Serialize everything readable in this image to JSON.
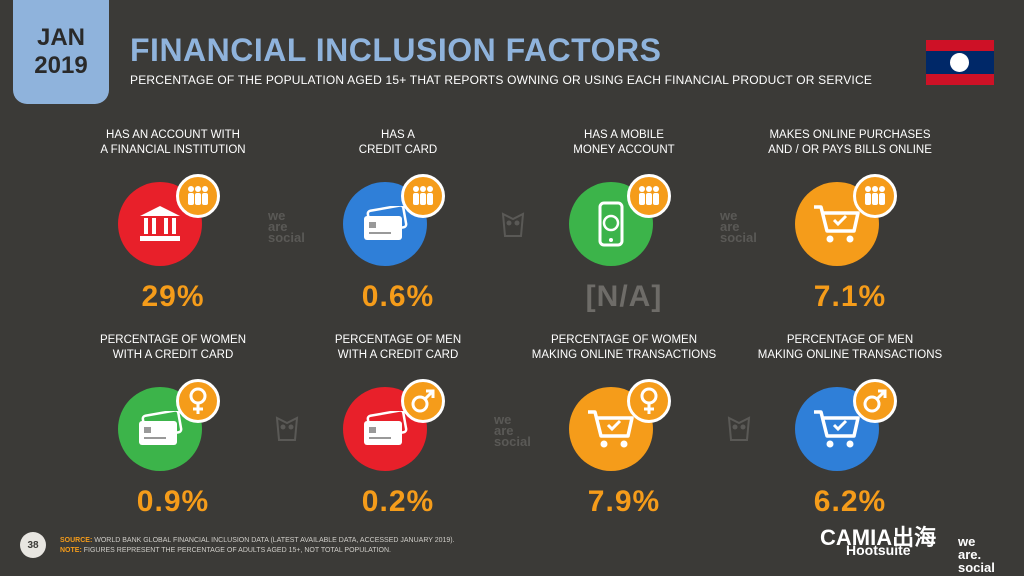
{
  "header": {
    "month": "JAN",
    "year": "2019",
    "title": "FINANCIAL INCLUSION FACTORS",
    "subtitle": "PERCENTAGE OF THE POPULATION AGED 15+ THAT REPORTS OWNING OR USING EACH FINANCIAL PRODUCT OR SERVICE"
  },
  "cards": [
    {
      "l1": "HAS AN ACCOUNT WITH",
      "l2": "A FINANCIAL INSTITUTION",
      "value": "29%",
      "color": "#e8202a",
      "icon": "bank-icon",
      "badge": "people-icon"
    },
    {
      "l1": "HAS A",
      "l2": "CREDIT CARD",
      "value": "0.6%",
      "color": "#2f7fd8",
      "icon": "credit-card-icon",
      "badge": "people-icon"
    },
    {
      "l1": "HAS A MOBILE",
      "l2": "MONEY ACCOUNT",
      "value": "[N/A]",
      "color": "#3cb44a",
      "icon": "mobile-money-icon",
      "badge": "people-icon"
    },
    {
      "l1": "MAKES ONLINE PURCHASES",
      "l2": "AND / OR PAYS BILLS ONLINE",
      "value": "7.1%",
      "color": "#f59c1a",
      "icon": "shopping-cart-icon",
      "badge": "people-icon"
    },
    {
      "l1": "PERCENTAGE OF WOMEN",
      "l2": "WITH A CREDIT CARD",
      "value": "0.9%",
      "color": "#3cb44a",
      "icon": "credit-card-icon",
      "badge": "female-icon"
    },
    {
      "l1": "PERCENTAGE OF MEN",
      "l2": "WITH A CREDIT CARD",
      "value": "0.2%",
      "color": "#e8202a",
      "icon": "credit-card-icon",
      "badge": "male-icon"
    },
    {
      "l1": "PERCENTAGE OF WOMEN",
      "l2": "MAKING ONLINE TRANSACTIONS",
      "value": "7.9%",
      "color": "#f59c1a",
      "icon": "shopping-cart-icon",
      "badge": "female-icon"
    },
    {
      "l1": "PERCENTAGE OF MEN",
      "l2": "MAKING ONLINE TRANSACTIONS",
      "value": "6.2%",
      "color": "#2f7fd8",
      "icon": "shopping-cart-icon",
      "badge": "male-icon"
    }
  ],
  "value_color": "#f59c1a",
  "badge_color": "#f59c1a",
  "watermark": {
    "l1": "we",
    "l2": "are",
    "l3": "social"
  },
  "footer": {
    "page": "38",
    "source_label": "SOURCE:",
    "source": "WORLD BANK GLOBAL FINANCIAL INCLUSION DATA (LATEST AVAILABLE DATA, ACCESSED JANUARY 2019).",
    "note_label": "NOTE:",
    "note": "FIGURES REPRESENT THE PERCENTAGE OF ADULTS AGED 15+, NOT TOTAL POPULATION.",
    "brand_overlay": "CAMIA出海",
    "brand_hootsuite": "Hootsuite",
    "brand_we": "we",
    "brand_are": "are.",
    "brand_social": "social"
  }
}
